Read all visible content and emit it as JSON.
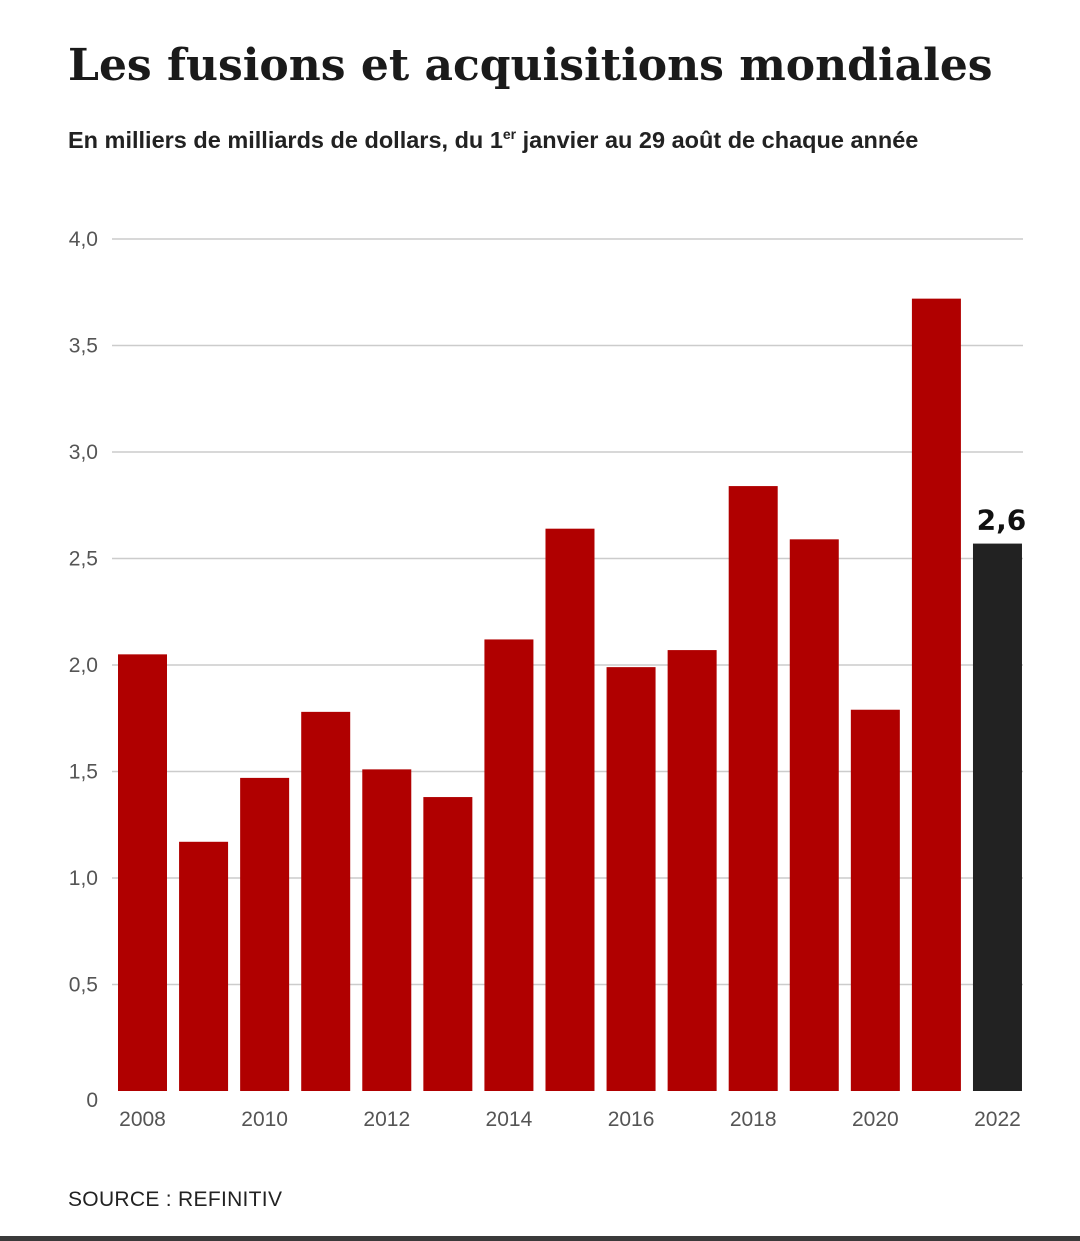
{
  "header": {
    "title": "Les fusions et acquisitions mondiales",
    "subtitle_before": "En milliers de milliards de dollars, du 1",
    "subtitle_sup": "er",
    "subtitle_after": " janvier au 29 août de chaque année"
  },
  "footer": {
    "source": "SOURCE : REFINITIV"
  },
  "colors": {
    "bar": "#b00000",
    "highlight_bar": "#222222",
    "grid": "#cccccc",
    "tick_text": "#555555"
  },
  "chart_data": {
    "type": "bar",
    "title": "Les fusions et acquisitions mondiales",
    "subtitle": "En milliers de milliards de dollars, du 1er janvier au 29 août de chaque année",
    "categories": [
      "2008",
      "2009",
      "2010",
      "2011",
      "2012",
      "2013",
      "2014",
      "2015",
      "2016",
      "2017",
      "2018",
      "2019",
      "2020",
      "2021",
      "2022"
    ],
    "values": [
      2.05,
      1.17,
      1.47,
      1.78,
      1.51,
      1.38,
      2.12,
      2.64,
      1.99,
      2.07,
      2.84,
      2.59,
      1.79,
      3.72,
      2.57
    ],
    "x_tick_labels": [
      "2008",
      "",
      "2010",
      "",
      "2012",
      "",
      "2014",
      "",
      "2016",
      "",
      "2018",
      "",
      "2020",
      "",
      "2022"
    ],
    "y_ticks": [
      0,
      0.5,
      1.0,
      1.5,
      2.0,
      2.5,
      3.0,
      3.5,
      4.0
    ],
    "y_tick_labels": [
      "0",
      "0,5",
      "1,0",
      "1,5",
      "2,0",
      "2,5",
      "3,0",
      "3,5",
      "4,0"
    ],
    "ylim": [
      0,
      4.0
    ],
    "highlight_category": "2022",
    "highlight_label": "2,6",
    "grid": true,
    "legend": "none",
    "xlabel": "",
    "ylabel": ""
  }
}
